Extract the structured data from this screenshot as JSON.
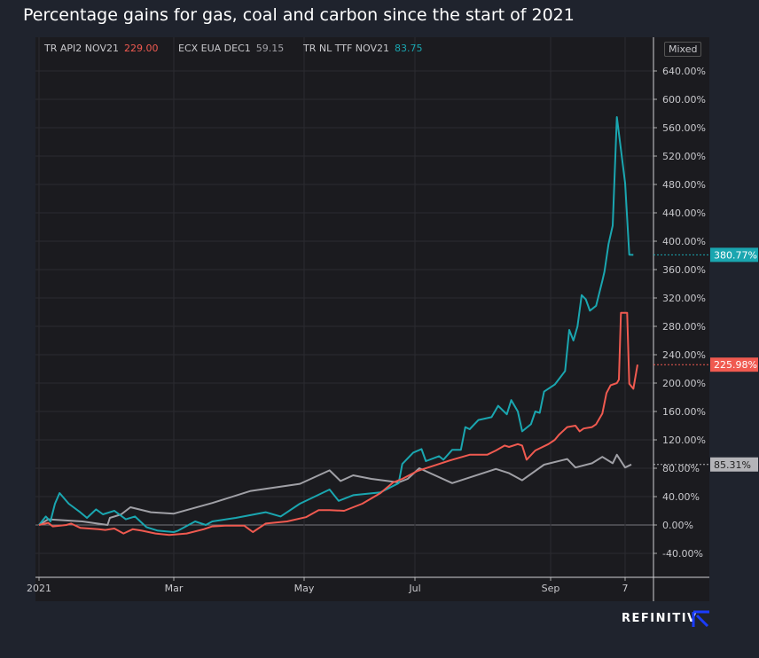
{
  "title": "Percentage gains for gas, coal and carbon since the start of 2021",
  "legend": [
    {
      "name": "TR API2 NOV21",
      "value": "229.00",
      "color": "#f05a50"
    },
    {
      "name": "ECX EUA DEC1",
      "value": "59.15",
      "color": "#a0a0a6"
    },
    {
      "name": "TR NL TTF NOV21",
      "value": "83.75",
      "color": "#1aa6b0"
    }
  ],
  "scale_button": "Mixed",
  "brand": "REFINITIV",
  "colors": {
    "background": "#1f232d",
    "panel": "#1b1b1f",
    "grid": "#2b2b31",
    "ttf": "#1aa6b0",
    "api2": "#f05a50",
    "eua": "#a0a0a6",
    "brand_icon": "#1a3cff"
  },
  "chart_data": {
    "type": "line",
    "title": "Percentage gains for gas, coal and carbon since the start of 2021",
    "y_unit": "%",
    "ylim": [
      -60,
      660
    ],
    "xlim": [
      "2020-12-30",
      "2021-11-02"
    ],
    "grid": true,
    "legend_placement": "top-left",
    "y_ticks": [
      "640.00%",
      "600.00%",
      "560.00%",
      "520.00%",
      "480.00%",
      "440.00%",
      "400.00%",
      "360.00%",
      "320.00%",
      "280.00%",
      "240.00%",
      "200.00%",
      "160.00%",
      "120.00%",
      "80.00%",
      "40.00%",
      "0.00%",
      "-40.00%"
    ],
    "y_tick_values": [
      640,
      600,
      560,
      520,
      480,
      440,
      400,
      360,
      320,
      280,
      240,
      200,
      160,
      120,
      80,
      40,
      0,
      -40
    ],
    "x_ticks": [
      {
        "label": "2021",
        "date": "2021-01-01"
      },
      {
        "label": "Mar",
        "date": "2021-03-01"
      },
      {
        "label": "May",
        "date": "2021-05-01"
      },
      {
        "label": "Jul",
        "date": "2021-07-01"
      },
      {
        "label": "Sep",
        "date": "2021-09-01"
      },
      {
        "label": "7",
        "date": "2021-10-07"
      }
    ],
    "last_value_labels": [
      {
        "series": "TR NL TTF NOV21",
        "text": "380.77%",
        "value": 380.77
      },
      {
        "series": "TR API2 NOV21",
        "text": "225.98%",
        "value": 225.98
      },
      {
        "series": "ECX EUA DEC1",
        "text": "85.31%",
        "value": 85.31
      }
    ],
    "series": [
      {
        "name": "TR NL TTF NOV21",
        "color": "#1aa6b0",
        "points": [
          [
            "2021-01-01",
            0
          ],
          [
            "2021-01-04",
            12
          ],
          [
            "2021-01-06",
            5
          ],
          [
            "2021-01-08",
            30
          ],
          [
            "2021-01-10",
            45
          ],
          [
            "2021-01-14",
            30
          ],
          [
            "2021-01-19",
            18
          ],
          [
            "2021-01-22",
            10
          ],
          [
            "2021-01-26",
            22
          ],
          [
            "2021-01-29",
            15
          ],
          [
            "2021-02-03",
            20
          ],
          [
            "2021-02-08",
            8
          ],
          [
            "2021-02-12",
            12
          ],
          [
            "2021-02-17",
            -3
          ],
          [
            "2021-02-22",
            -8
          ],
          [
            "2021-03-01",
            -10
          ],
          [
            "2021-03-03",
            -8
          ],
          [
            "2021-03-11",
            5
          ],
          [
            "2021-03-16",
            0
          ],
          [
            "2021-03-19",
            5
          ],
          [
            "2021-03-30",
            10
          ],
          [
            "2021-04-13",
            18
          ],
          [
            "2021-04-20",
            12
          ],
          [
            "2021-04-29",
            30
          ],
          [
            "2021-05-15",
            50
          ],
          [
            "2021-05-20",
            34
          ],
          [
            "2021-05-28",
            42
          ],
          [
            "2021-06-12",
            46
          ],
          [
            "2021-06-22",
            59
          ],
          [
            "2021-06-24",
            86
          ],
          [
            "2021-06-30",
            102
          ],
          [
            "2021-07-04",
            107
          ],
          [
            "2021-07-06",
            90
          ],
          [
            "2021-07-12",
            97
          ],
          [
            "2021-07-14",
            92
          ],
          [
            "2021-07-18",
            106
          ],
          [
            "2021-07-22",
            106
          ],
          [
            "2021-07-24",
            138
          ],
          [
            "2021-07-26",
            135
          ],
          [
            "2021-07-30",
            148
          ],
          [
            "2021-08-05",
            152
          ],
          [
            "2021-08-08",
            168
          ],
          [
            "2021-08-12",
            156
          ],
          [
            "2021-08-14",
            176
          ],
          [
            "2021-08-17",
            160
          ],
          [
            "2021-08-19",
            132
          ],
          [
            "2021-08-23",
            142
          ],
          [
            "2021-08-25",
            160
          ],
          [
            "2021-08-27",
            158
          ],
          [
            "2021-08-29",
            188
          ],
          [
            "2021-09-03",
            198
          ],
          [
            "2021-09-08",
            217
          ],
          [
            "2021-09-10",
            275
          ],
          [
            "2021-09-12",
            260
          ],
          [
            "2021-09-14",
            280
          ],
          [
            "2021-09-16",
            324
          ],
          [
            "2021-09-18",
            318
          ],
          [
            "2021-09-20",
            302
          ],
          [
            "2021-09-23",
            309
          ],
          [
            "2021-09-26",
            344
          ],
          [
            "2021-09-27",
            357
          ],
          [
            "2021-09-29",
            396
          ],
          [
            "2021-10-01",
            422
          ],
          [
            "2021-10-03",
            575
          ],
          [
            "2021-10-04",
            552
          ],
          [
            "2021-10-07",
            482
          ],
          [
            "2021-10-09",
            381
          ],
          [
            "2021-10-11",
            380.77
          ]
        ]
      },
      {
        "name": "TR API2 NOV21",
        "color": "#f05a50",
        "points": [
          [
            "2021-01-01",
            0
          ],
          [
            "2021-01-05",
            3
          ],
          [
            "2021-01-07",
            -2
          ],
          [
            "2021-01-13",
            0
          ],
          [
            "2021-01-15",
            2
          ],
          [
            "2021-01-19",
            -4
          ],
          [
            "2021-01-27",
            -6
          ],
          [
            "2021-01-30",
            -7
          ],
          [
            "2021-02-03",
            -5
          ],
          [
            "2021-02-07",
            -12
          ],
          [
            "2021-02-11",
            -6
          ],
          [
            "2021-02-15",
            -8
          ],
          [
            "2021-02-21",
            -12
          ],
          [
            "2021-02-27",
            -14
          ],
          [
            "2021-03-07",
            -12
          ],
          [
            "2021-03-15",
            -6
          ],
          [
            "2021-03-19",
            -2
          ],
          [
            "2021-03-25",
            -1
          ],
          [
            "2021-04-03",
            -1
          ],
          [
            "2021-04-07",
            -10
          ],
          [
            "2021-04-13",
            2
          ],
          [
            "2021-04-23",
            5
          ],
          [
            "2021-05-02",
            11
          ],
          [
            "2021-05-09",
            21
          ],
          [
            "2021-05-15",
            21
          ],
          [
            "2021-05-23",
            20
          ],
          [
            "2021-06-02",
            30
          ],
          [
            "2021-06-12",
            45
          ],
          [
            "2021-06-19",
            60
          ],
          [
            "2021-06-24",
            65
          ],
          [
            "2021-07-02",
            76
          ],
          [
            "2021-07-10",
            84
          ],
          [
            "2021-07-18",
            92
          ],
          [
            "2021-07-26",
            99
          ],
          [
            "2021-08-03",
            99
          ],
          [
            "2021-08-07",
            105
          ],
          [
            "2021-08-11",
            112
          ],
          [
            "2021-08-13",
            110
          ],
          [
            "2021-08-17",
            114
          ],
          [
            "2021-08-19",
            112
          ],
          [
            "2021-08-21",
            92
          ],
          [
            "2021-08-25",
            105
          ],
          [
            "2021-08-31",
            114
          ],
          [
            "2021-09-03",
            120
          ],
          [
            "2021-09-05",
            127
          ],
          [
            "2021-09-09",
            138
          ],
          [
            "2021-09-13",
            140
          ],
          [
            "2021-09-15",
            132
          ],
          [
            "2021-09-17",
            136
          ],
          [
            "2021-09-21",
            138
          ],
          [
            "2021-09-23",
            142
          ],
          [
            "2021-09-26",
            157
          ],
          [
            "2021-09-28",
            186
          ],
          [
            "2021-09-30",
            197
          ],
          [
            "2021-10-03",
            200
          ],
          [
            "2021-10-04",
            205
          ],
          [
            "2021-10-05",
            299
          ],
          [
            "2021-10-08",
            299
          ],
          [
            "2021-10-09",
            199
          ],
          [
            "2021-10-11",
            192
          ],
          [
            "2021-10-13",
            225.98
          ]
        ]
      },
      {
        "name": "ECX EUA DEC1",
        "color": "#a0a0a6",
        "points": [
          [
            "2021-01-01",
            0
          ],
          [
            "2021-01-05",
            8
          ],
          [
            "2021-01-20",
            5
          ],
          [
            "2021-01-31",
            0
          ],
          [
            "2021-02-01",
            10
          ],
          [
            "2021-02-06",
            15
          ],
          [
            "2021-02-10",
            25
          ],
          [
            "2021-02-19",
            18
          ],
          [
            "2021-03-01",
            16
          ],
          [
            "2021-03-19",
            31
          ],
          [
            "2021-04-06",
            48
          ],
          [
            "2021-04-29",
            58
          ],
          [
            "2021-05-15",
            77
          ],
          [
            "2021-05-21",
            62
          ],
          [
            "2021-05-28",
            70
          ],
          [
            "2021-06-07",
            65
          ],
          [
            "2021-06-22",
            60
          ],
          [
            "2021-06-27",
            65
          ],
          [
            "2021-07-03",
            80
          ],
          [
            "2021-07-18",
            59
          ],
          [
            "2021-08-07",
            79
          ],
          [
            "2021-08-13",
            73
          ],
          [
            "2021-08-19",
            63
          ],
          [
            "2021-08-29",
            85
          ],
          [
            "2021-09-09",
            93
          ],
          [
            "2021-09-13",
            81
          ],
          [
            "2021-09-21",
            87
          ],
          [
            "2021-09-26",
            96
          ],
          [
            "2021-10-01",
            87
          ],
          [
            "2021-10-03",
            99
          ],
          [
            "2021-10-07",
            81
          ],
          [
            "2021-10-10",
            85.31
          ]
        ]
      }
    ]
  }
}
